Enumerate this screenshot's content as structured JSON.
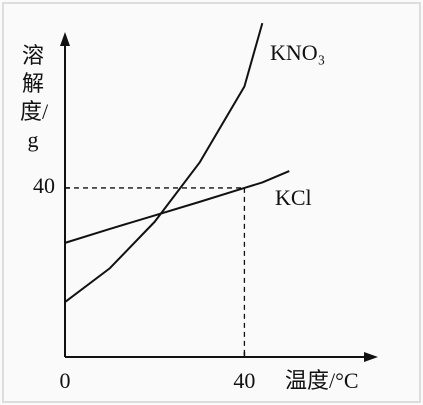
{
  "chart_data": {
    "type": "line",
    "y_label": "溶解度/g",
    "x_label": "温度/°C",
    "x": [
      0,
      10,
      20,
      30,
      40,
      44,
      50
    ],
    "series": [
      {
        "name": "KNO₃",
        "color": "#111111",
        "values": [
          13,
          21,
          32,
          46,
          64,
          79,
          null
        ]
      },
      {
        "name": "KCl",
        "color": "#111111",
        "values": [
          27,
          30.3,
          33.5,
          36.7,
          40,
          41.3,
          44
        ]
      }
    ],
    "xlim": [
      0,
      68
    ],
    "ylim": [
      0,
      75
    ],
    "xticks": [
      0,
      40
    ],
    "yticks": [
      40
    ],
    "grid": false
  }
}
